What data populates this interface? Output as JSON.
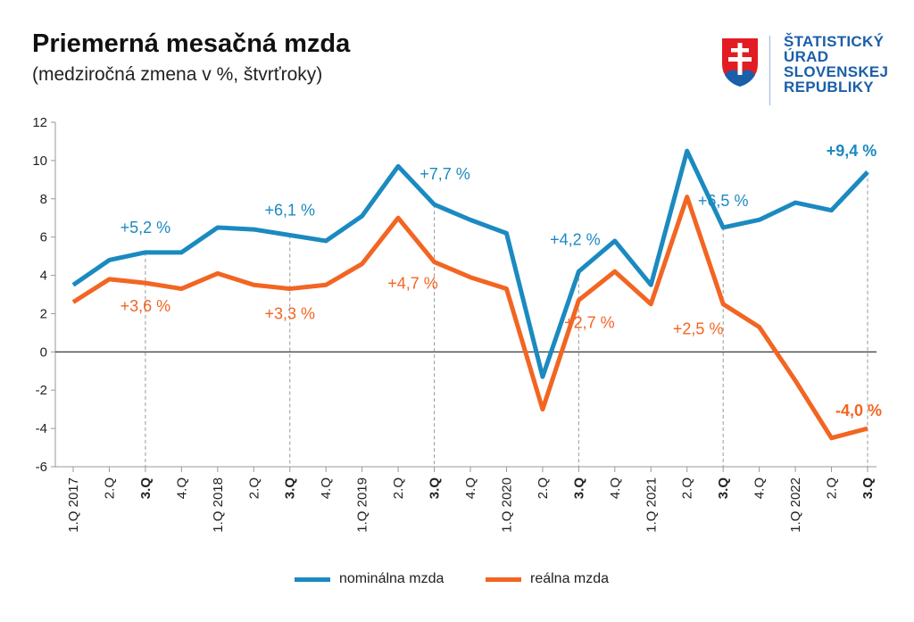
{
  "header": {
    "title": "Priemerná mesačná mzda",
    "subtitle": "(medziročná zmena v %, štvrťroky)"
  },
  "logo": {
    "lines": [
      "ŠTATISTICKÝ",
      "ÚRAD",
      "SLOVENSKEJ",
      "REPUBLIKY"
    ],
    "icon": "slovak-coat-of-arms-icon",
    "color": "#1a5fa8"
  },
  "colors": {
    "nominal": "#1b8ac0",
    "real": "#f26522"
  },
  "chart_data": {
    "type": "line",
    "title": "Priemerná mesačná mzda",
    "subtitle": "(medziročná zmena v %, štvrťroky)",
    "categories": [
      "1.Q 2017",
      "2.Q",
      "3.Q",
      "4.Q",
      "1.Q 2018",
      "2.Q",
      "3.Q",
      "4.Q",
      "1.Q 2019",
      "2.Q",
      "3.Q",
      "4.Q",
      "1.Q 2020",
      "2.Q",
      "3.Q",
      "4.Q",
      "1.Q 2021",
      "2.Q",
      "3.Q",
      "4.Q",
      "1.Q 2022",
      "2.Q",
      "3.Q"
    ],
    "bold_categories": [
      2,
      6,
      10,
      14,
      18,
      22
    ],
    "ylim": [
      -6,
      12
    ],
    "yticks": [
      "-6",
      "-4",
      "-2",
      "0",
      "2",
      "4",
      "6",
      "8",
      "10",
      "12"
    ],
    "grid": false,
    "legend_position": "bottom",
    "series": [
      {
        "name": "nominálna mzda",
        "color": "#1b8ac0",
        "values": [
          3.5,
          4.8,
          5.2,
          5.2,
          6.5,
          6.4,
          6.1,
          5.8,
          7.1,
          9.7,
          7.7,
          6.9,
          6.2,
          -1.3,
          4.2,
          5.8,
          3.5,
          10.5,
          6.5,
          6.9,
          7.8,
          7.4,
          9.4
        ]
      },
      {
        "name": "reálna mzda",
        "color": "#f26522",
        "values": [
          2.6,
          3.8,
          3.6,
          3.3,
          4.1,
          3.5,
          3.3,
          3.5,
          4.6,
          7.0,
          4.7,
          3.9,
          3.3,
          -3.0,
          2.7,
          4.2,
          2.5,
          8.1,
          2.5,
          1.3,
          -1.5,
          -4.5,
          -4.0
        ]
      }
    ],
    "annotations": [
      {
        "text": "+5,2 %",
        "series": 0,
        "index": 2,
        "bold": false
      },
      {
        "text": "+6,1 %",
        "series": 0,
        "index": 6,
        "bold": false
      },
      {
        "text": "+7,7 %",
        "series": 0,
        "index": 10,
        "bold": false
      },
      {
        "text": "+4,2 %",
        "series": 0,
        "index": 14,
        "bold": false
      },
      {
        "text": "+6,5 %",
        "series": 0,
        "index": 18,
        "bold": false
      },
      {
        "text": "+9,4 %",
        "series": 0,
        "index": 22,
        "bold": true
      },
      {
        "text": "+3,6 %",
        "series": 1,
        "index": 2,
        "bold": false
      },
      {
        "text": "+3,3 %",
        "series": 1,
        "index": 6,
        "bold": false
      },
      {
        "text": "+4,7 %",
        "series": 1,
        "index": 10,
        "bold": false
      },
      {
        "text": "+2,7 %",
        "series": 1,
        "index": 14,
        "bold": false
      },
      {
        "text": "+2,5 %",
        "series": 1,
        "index": 18,
        "bold": false
      },
      {
        "text": "-4,0 %",
        "series": 1,
        "index": 22,
        "bold": true
      }
    ]
  },
  "legend": {
    "items": [
      {
        "label": "nominálna mzda",
        "color": "#1b8ac0"
      },
      {
        "label": "reálna mzda",
        "color": "#f26522"
      }
    ]
  }
}
